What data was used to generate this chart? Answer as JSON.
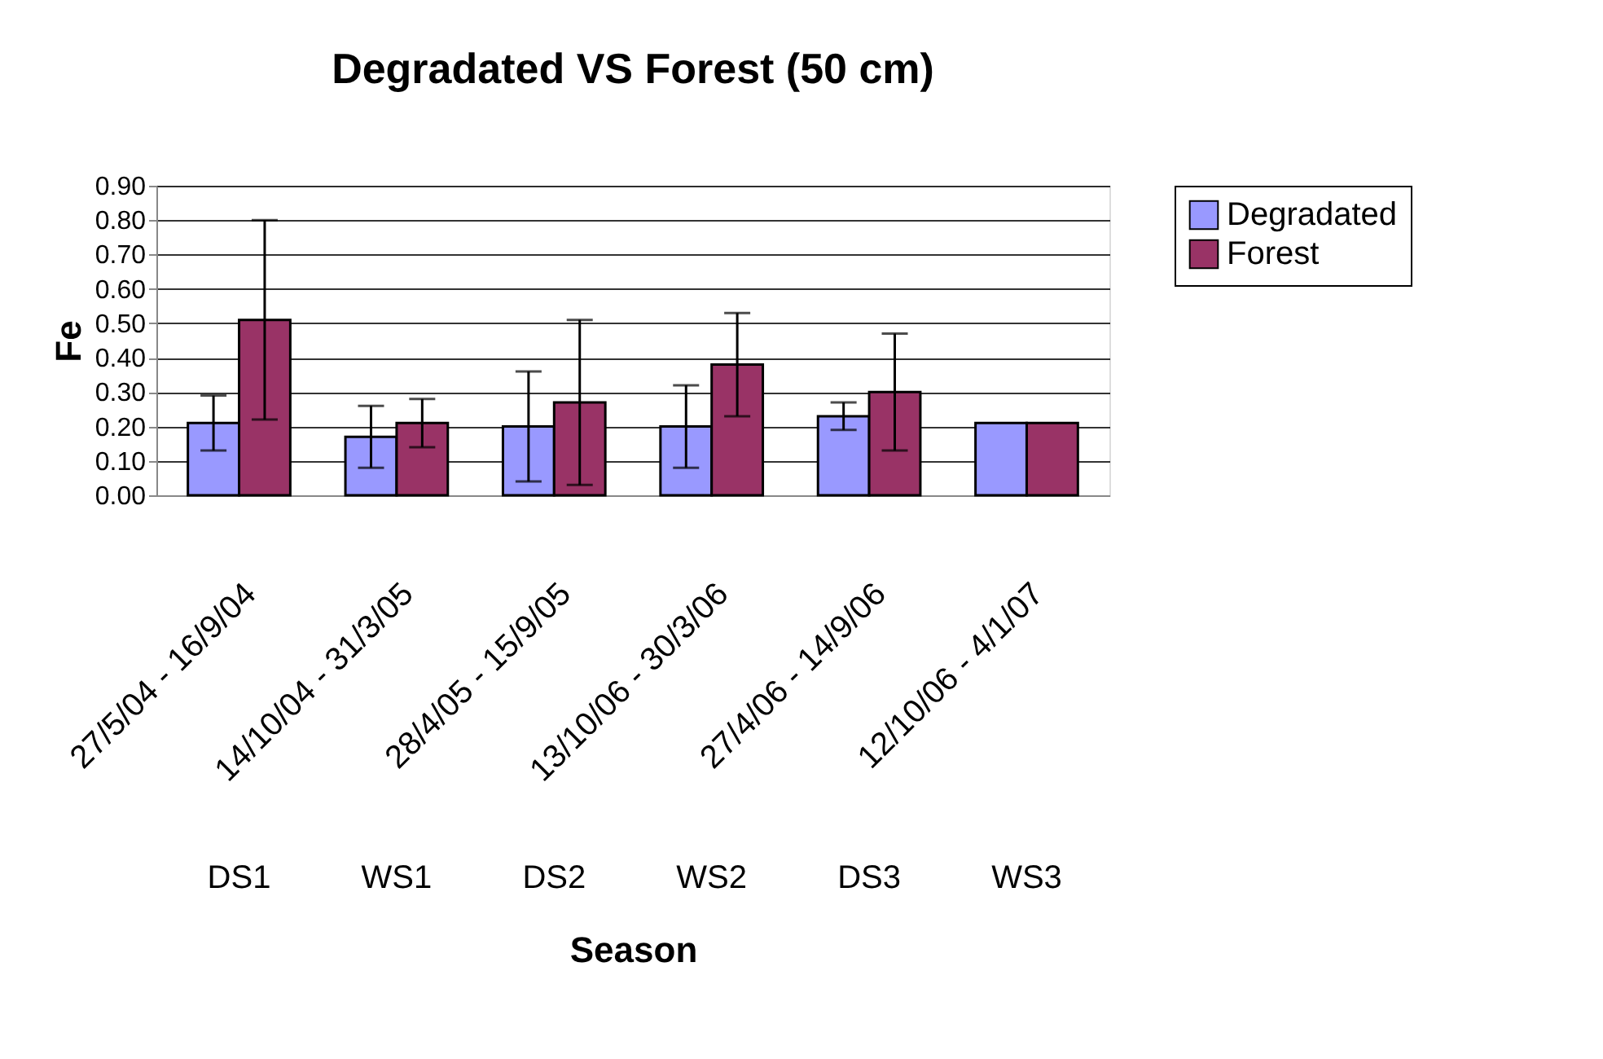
{
  "chart_data": {
    "type": "bar",
    "title": "Degradated VS Forest (50 cm)",
    "xlabel": "Season",
    "ylabel": "Fe",
    "categories": [
      "27/5/04 - 16/9/04",
      "14/10/04 - 31/3/05",
      "28/4/05 - 15/9/05",
      "13/10/06 - 30/3/06",
      "27/4/06 - 14/9/06",
      "12/10/06 - 4/1/07"
    ],
    "series": [
      {
        "name": "Degradated",
        "color": "#9999ff",
        "values": [
          0.21,
          0.17,
          0.2,
          0.2,
          0.23,
          0.21
        ],
        "errors": [
          0.08,
          0.09,
          0.16,
          0.12,
          0.04,
          null
        ]
      },
      {
        "name": "Forest",
        "color": "#993366",
        "values": [
          0.51,
          0.21,
          0.27,
          0.38,
          0.3,
          0.21
        ],
        "errors": [
          0.29,
          0.07,
          0.24,
          0.15,
          0.17,
          null
        ]
      }
    ],
    "ylim": [
      0,
      0.9
    ],
    "yticks": [
      {
        "value": 0,
        "label": "0.00"
      },
      {
        "value": 0.1,
        "label": "0.10"
      },
      {
        "value": 0.2,
        "label": "0.20"
      },
      {
        "value": 0.3,
        "label": "0.30"
      },
      {
        "value": 0.4,
        "label": "0.40"
      },
      {
        "value": 0.5,
        "label": "0.50"
      },
      {
        "value": 0.6,
        "label": "0.60"
      },
      {
        "value": 0.7,
        "label": "0.70"
      },
      {
        "value": 0.8,
        "label": "0.80"
      },
      {
        "value": 0.9,
        "label": "0.90"
      }
    ],
    "grid": "y",
    "legend": "right",
    "annotations": [
      "DS1",
      "WS1",
      "DS2",
      "WS2",
      "DS3",
      "WS3"
    ]
  }
}
